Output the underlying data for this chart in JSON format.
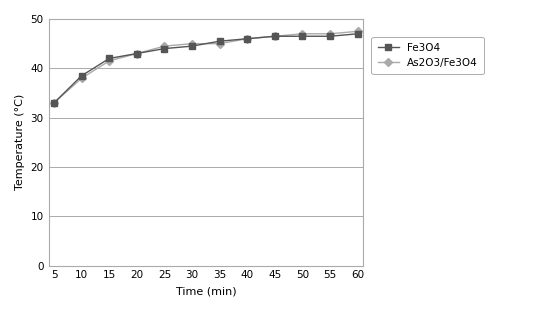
{
  "x": [
    5,
    10,
    15,
    20,
    25,
    30,
    35,
    40,
    45,
    50,
    55,
    60
  ],
  "fe3o4": [
    33,
    38.5,
    42.0,
    43.0,
    44.0,
    44.5,
    45.5,
    46.0,
    46.5,
    46.5,
    46.5,
    47.0
  ],
  "as2o3_fe3o4": [
    33,
    38.0,
    41.5,
    43.0,
    44.5,
    45.0,
    45.0,
    46.0,
    46.5,
    47.0,
    47.0,
    47.5
  ],
  "fe3o4_color": "#555555",
  "as2o3_color": "#aaaaaa",
  "fe3o4_label": "Fe3O4",
  "as2o3_label": "As2O3/Fe3O4",
  "xlabel": "Time (min)",
  "ylabel": "Temperature (°C)",
  "ylim": [
    0,
    50
  ],
  "yticks": [
    0,
    10,
    20,
    30,
    40,
    50
  ],
  "xlim_min": 4.0,
  "xlim_max": 61.0,
  "xticks": [
    5,
    10,
    15,
    20,
    25,
    30,
    35,
    40,
    45,
    50,
    55,
    60
  ],
  "bg_color": "#ffffff",
  "grid_color": "#888888",
  "spine_color": "#aaaaaa"
}
